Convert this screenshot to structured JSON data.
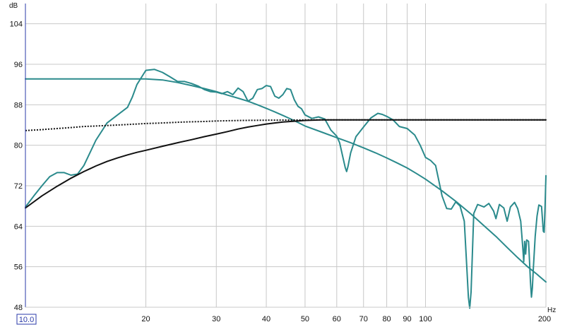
{
  "chart_data": {
    "type": "line",
    "ylabel": "dB",
    "xlabel": "Hz",
    "x_scale": "log",
    "xlim": [
      10,
      200
    ],
    "ylim": [
      48,
      108
    ],
    "grid": true,
    "x_ticks": [
      {
        "value": 10,
        "label": "10.0"
      },
      {
        "value": 20,
        "label": "20"
      },
      {
        "value": 30,
        "label": "30"
      },
      {
        "value": 40,
        "label": "40"
      },
      {
        "value": 50,
        "label": "50"
      },
      {
        "value": 60,
        "label": "60"
      },
      {
        "value": 70,
        "label": "70"
      },
      {
        "value": 80,
        "label": "80"
      },
      {
        "value": 90,
        "label": "90"
      },
      {
        "value": 100,
        "label": "100"
      },
      {
        "value": 200,
        "label": "200"
      }
    ],
    "y_ticks": [
      {
        "value": 48,
        "label": "48"
      },
      {
        "value": 56,
        "label": "56"
      },
      {
        "value": 64,
        "label": "64"
      },
      {
        "value": 72,
        "label": "72"
      },
      {
        "value": 80,
        "label": "80"
      },
      {
        "value": 88,
        "label": "88"
      },
      {
        "value": 96,
        "label": "96"
      },
      {
        "value": 104,
        "label": "104"
      }
    ],
    "series": [
      {
        "color": "#2a8a8c",
        "style": "solid",
        "width": 2,
        "points": [
          [
            10,
            67.8
          ],
          [
            10.5,
            70
          ],
          [
            11,
            72
          ],
          [
            11.5,
            73.8
          ],
          [
            12,
            74.6
          ],
          [
            12.5,
            74.6
          ],
          [
            13,
            74.1
          ],
          [
            13.5,
            74.3
          ],
          [
            14,
            76
          ],
          [
            15,
            81
          ],
          [
            16,
            84.4
          ],
          [
            17,
            86
          ],
          [
            18,
            87.5
          ],
          [
            18.5,
            89.5
          ],
          [
            19,
            92
          ],
          [
            20,
            94.8
          ],
          [
            21,
            95
          ],
          [
            22,
            94.4
          ],
          [
            23,
            93.5
          ],
          [
            24,
            92.6
          ],
          [
            25,
            92.6
          ],
          [
            26,
            92.2
          ],
          [
            27,
            91.7
          ],
          [
            28,
            91
          ],
          [
            29,
            90.6
          ],
          [
            30,
            90.5
          ],
          [
            31,
            90.2
          ],
          [
            32,
            90.6
          ],
          [
            33,
            90
          ],
          [
            34,
            91.3
          ],
          [
            35,
            90.6
          ],
          [
            36,
            88.7
          ],
          [
            37,
            89.3
          ],
          [
            38,
            91
          ],
          [
            39,
            91.2
          ],
          [
            40,
            91.8
          ],
          [
            41,
            91.6
          ],
          [
            42,
            89.7
          ],
          [
            43,
            89.3
          ],
          [
            44,
            90
          ],
          [
            45,
            91.2
          ],
          [
            46,
            91
          ],
          [
            47,
            89
          ],
          [
            48,
            87.7
          ],
          [
            49,
            87.2
          ],
          [
            50,
            86
          ],
          [
            52,
            85.3
          ],
          [
            54,
            85.6
          ],
          [
            56,
            85.2
          ],
          [
            58,
            83
          ],
          [
            60,
            81.8
          ],
          [
            61,
            80.5
          ],
          [
            62,
            78
          ],
          [
            63,
            75.6
          ],
          [
            63.5,
            74.8
          ],
          [
            64,
            75.8
          ],
          [
            65,
            78.5
          ],
          [
            67,
            81.7
          ],
          [
            70,
            83.6
          ],
          [
            73,
            85.4
          ],
          [
            76,
            86.3
          ],
          [
            78,
            86.1
          ],
          [
            80,
            85.7
          ],
          [
            83,
            85
          ],
          [
            86,
            83.7
          ],
          [
            90,
            83.3
          ],
          [
            94,
            82
          ],
          [
            97,
            80
          ],
          [
            100,
            77.6
          ],
          [
            103,
            77
          ],
          [
            106,
            76
          ],
          [
            110,
            70
          ],
          [
            113,
            67.5
          ],
          [
            116,
            67.4
          ],
          [
            119,
            68.8
          ],
          [
            122,
            68
          ],
          [
            125,
            65
          ],
          [
            127,
            55
          ],
          [
            128,
            50
          ],
          [
            129,
            47.8
          ],
          [
            130,
            51
          ],
          [
            132,
            66.5
          ],
          [
            135,
            68.3
          ],
          [
            140,
            67.8
          ],
          [
            144,
            68.5
          ],
          [
            148,
            67
          ],
          [
            150,
            65.5
          ],
          [
            153,
            68.3
          ],
          [
            157,
            67.6
          ],
          [
            160,
            65
          ],
          [
            163,
            67.8
          ],
          [
            167,
            68.7
          ],
          [
            170,
            67.5
          ],
          [
            173,
            65
          ],
          [
            175,
            60
          ],
          [
            176,
            57
          ],
          [
            177,
            61
          ],
          [
            178,
            58.5
          ],
          [
            179,
            61.3
          ],
          [
            181,
            61
          ],
          [
            182,
            57
          ],
          [
            183,
            53
          ],
          [
            184,
            50
          ],
          [
            185,
            51.8
          ],
          [
            186,
            55.5
          ],
          [
            188,
            62
          ],
          [
            190,
            66
          ],
          [
            192,
            68.2
          ],
          [
            195,
            67.9
          ],
          [
            197,
            63
          ],
          [
            198,
            62.8
          ],
          [
            199,
            68
          ],
          [
            200,
            74
          ]
        ]
      },
      {
        "color": "#2a8a8c",
        "style": "solid",
        "width": 2,
        "points": [
          [
            10,
            93.1
          ],
          [
            12,
            93.1
          ],
          [
            14,
            93.1
          ],
          [
            16,
            93.1
          ],
          [
            18,
            93.1
          ],
          [
            20,
            93.1
          ],
          [
            22,
            92.9
          ],
          [
            24,
            92.4
          ],
          [
            26,
            91.8
          ],
          [
            28,
            91.2
          ],
          [
            30,
            90.6
          ],
          [
            32,
            89.9
          ],
          [
            34,
            89.3
          ],
          [
            36,
            88.7
          ],
          [
            38,
            88
          ],
          [
            40,
            87.3
          ],
          [
            42,
            86.6
          ],
          [
            44,
            85.9
          ],
          [
            46,
            85.2
          ],
          [
            48,
            84.5
          ],
          [
            50,
            83.8
          ],
          [
            55,
            82.6
          ],
          [
            60,
            81.5
          ],
          [
            65,
            80.5
          ],
          [
            70,
            79.5
          ],
          [
            75,
            78.5
          ],
          [
            80,
            77.5
          ],
          [
            85,
            76.5
          ],
          [
            90,
            75.5
          ],
          [
            95,
            74.4
          ],
          [
            100,
            73.3
          ],
          [
            110,
            71
          ],
          [
            120,
            68.7
          ],
          [
            130,
            66.4
          ],
          [
            140,
            64.1
          ],
          [
            150,
            62
          ],
          [
            160,
            59.8
          ],
          [
            170,
            57.8
          ],
          [
            180,
            56
          ],
          [
            190,
            54.5
          ],
          [
            200,
            53
          ]
        ]
      },
      {
        "color": "#111111",
        "style": "solid",
        "width": 2,
        "points": [
          [
            10,
            67.6
          ],
          [
            11,
            70
          ],
          [
            12,
            71.9
          ],
          [
            13,
            73.5
          ],
          [
            14,
            74.8
          ],
          [
            15,
            75.9
          ],
          [
            16,
            76.8
          ],
          [
            17,
            77.5
          ],
          [
            18,
            78.1
          ],
          [
            19,
            78.6
          ],
          [
            20,
            79
          ],
          [
            22,
            79.8
          ],
          [
            24,
            80.5
          ],
          [
            26,
            81.1
          ],
          [
            28,
            81.7
          ],
          [
            30,
            82.2
          ],
          [
            32,
            82.7
          ],
          [
            34,
            83.2
          ],
          [
            36,
            83.6
          ],
          [
            38,
            83.9
          ],
          [
            40,
            84.2
          ],
          [
            42,
            84.4
          ],
          [
            44,
            84.6
          ],
          [
            46,
            84.7
          ],
          [
            48,
            84.8
          ],
          [
            50,
            84.9
          ],
          [
            55,
            85
          ],
          [
            60,
            85
          ],
          [
            80,
            85
          ],
          [
            100,
            85
          ],
          [
            150,
            85
          ],
          [
            200,
            85
          ]
        ]
      },
      {
        "color": "#111111",
        "style": "dotted",
        "width": 2,
        "points": [
          [
            10,
            82.9
          ],
          [
            11,
            83.1
          ],
          [
            12,
            83.3
          ],
          [
            13,
            83.5
          ],
          [
            14,
            83.7
          ],
          [
            15,
            83.8
          ],
          [
            16,
            83.9
          ],
          [
            17,
            84
          ],
          [
            18,
            84.1
          ],
          [
            20,
            84.3
          ],
          [
            22,
            84.4
          ],
          [
            25,
            84.6
          ],
          [
            28,
            84.7
          ],
          [
            30,
            84.8
          ],
          [
            35,
            84.9
          ],
          [
            40,
            84.95
          ],
          [
            50,
            85
          ],
          [
            60,
            85
          ],
          [
            200,
            85
          ]
        ]
      }
    ]
  }
}
